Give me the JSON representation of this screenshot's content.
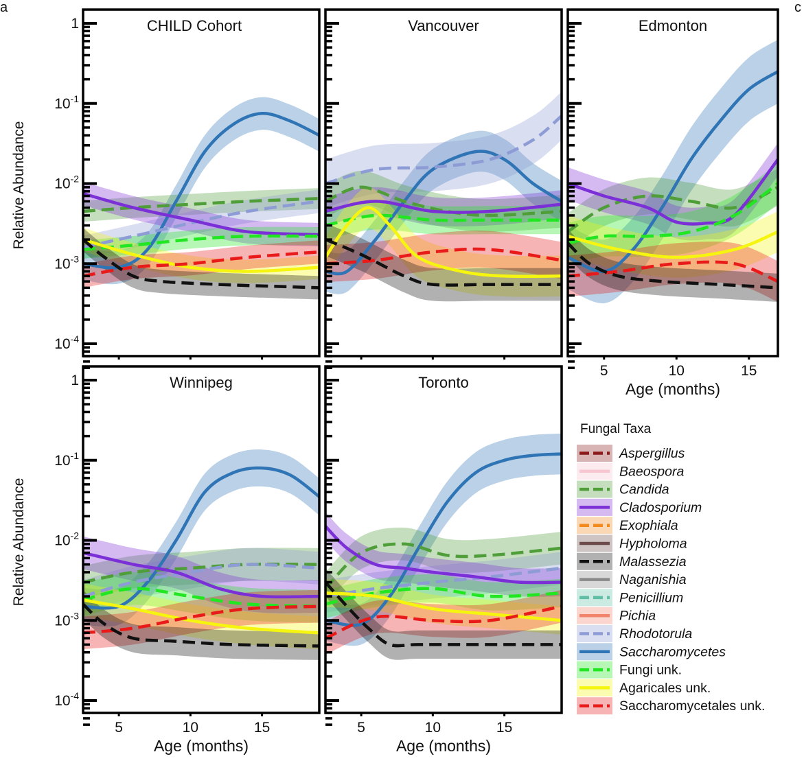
{
  "figure": {
    "panel_labels": [
      "a",
      "c"
    ],
    "ylabel": "Relative Abundance",
    "xlabel": "Age (months)",
    "legend_title": "Fungal Taxa"
  },
  "legend": [
    {
      "name": "Aspergillus",
      "italic": true,
      "color": "#8b1a1a",
      "dash": true
    },
    {
      "name": "Baeospora",
      "italic": true,
      "color": "#f7c6d0",
      "dash": false
    },
    {
      "name": "Candida",
      "italic": true,
      "color": "#4f9e3a",
      "dash": true
    },
    {
      "name": "Cladosporium",
      "italic": true,
      "color": "#7b2fd6",
      "dash": false
    },
    {
      "name": "Exophiala",
      "italic": true,
      "color": "#f28a1e",
      "dash": true
    },
    {
      "name": "Hypholoma",
      "italic": true,
      "color": "#6e4b4b",
      "dash": false
    },
    {
      "name": "Malassezia",
      "italic": true,
      "color": "#111111",
      "dash": true
    },
    {
      "name": "Naganishia",
      "italic": true,
      "color": "#8a8a8a",
      "dash": false
    },
    {
      "name": "Penicillium",
      "italic": true,
      "color": "#5fbfa6",
      "dash": true
    },
    {
      "name": "Pichia",
      "italic": true,
      "color": "#f2836b",
      "dash": false
    },
    {
      "name": "Rhodotorula",
      "italic": true,
      "color": "#8e9cd6",
      "dash": true
    },
    {
      "name": "Saccharomycetes",
      "italic": true,
      "color": "#2f74b5",
      "dash": false
    },
    {
      "name": "Fungi unk.",
      "italic": false,
      "color": "#22e622",
      "dash": true
    },
    {
      "name": "Agaricales unk.",
      "italic": false,
      "color": "#f5f50f",
      "dash": false
    },
    {
      "name": "Saccharomycetales unk.",
      "italic": false,
      "color": "#e81a1a",
      "dash": true
    }
  ],
  "chart_data": [
    {
      "type": "line",
      "title": "CHILD Cohort",
      "ylabel": "Relative Abundance",
      "xlabel": "",
      "yscale": "log",
      "ylim": [
        5e-05,
        1
      ],
      "xlim": [
        2.5,
        19
      ],
      "yticks": [
        1,
        0.1,
        0.01,
        0.001,
        0.0001
      ],
      "yticklabels": [
        "1",
        "10^-1",
        "10^-2",
        "10^-3",
        "10^-4"
      ],
      "xticks": [],
      "xticklabels": [],
      "series": [
        {
          "name": "Saccharomycetes",
          "x": [
            2.5,
            5,
            7,
            9,
            11,
            13,
            15,
            17,
            19
          ],
          "y": [
            0.001,
            0.0009,
            0.0015,
            0.006,
            0.025,
            0.055,
            0.075,
            0.06,
            0.04
          ],
          "band": 1.6
        },
        {
          "name": "Candida",
          "x": [
            2.5,
            6,
            10,
            14,
            19
          ],
          "y": [
            0.0045,
            0.005,
            0.0055,
            0.006,
            0.0065
          ],
          "band": 1.35
        },
        {
          "name": "Rhodotorula",
          "x": [
            2.5,
            6,
            10,
            14,
            19
          ],
          "y": [
            0.0016,
            0.0022,
            0.0032,
            0.0045,
            0.006
          ],
          "band": 1.4
        },
        {
          "name": "Cladosporium",
          "x": [
            2.5,
            6,
            10,
            14,
            19
          ],
          "y": [
            0.0075,
            0.005,
            0.0035,
            0.0025,
            0.0023
          ],
          "band": 1.4
        },
        {
          "name": "Fungi unk.",
          "x": [
            2.5,
            6,
            10,
            14,
            19
          ],
          "y": [
            0.0015,
            0.0017,
            0.002,
            0.0022,
            0.0022
          ],
          "band": 1.3
        },
        {
          "name": "Agaricales unk.",
          "x": [
            2.5,
            6,
            10,
            14,
            19
          ],
          "y": [
            0.002,
            0.0013,
            0.0009,
            0.0008,
            0.0009
          ],
          "band": 1.4
        },
        {
          "name": "Saccharomycetales unk.",
          "x": [
            2.5,
            6,
            10,
            14,
            19
          ],
          "y": [
            0.0007,
            0.0009,
            0.001,
            0.0012,
            0.0014
          ],
          "band": 1.4
        },
        {
          "name": "Malassezia",
          "x": [
            2.5,
            4,
            6,
            8,
            12,
            16,
            19
          ],
          "y": [
            0.002,
            0.0012,
            0.0007,
            0.0006,
            0.00055,
            0.00052,
            0.0005
          ],
          "band": 1.4
        }
      ]
    },
    {
      "type": "line",
      "title": "Vancouver",
      "ylabel": "",
      "xlabel": "",
      "yscale": "log",
      "ylim": [
        5e-05,
        1
      ],
      "xlim": [
        2.5,
        19
      ],
      "yticks": [
        1,
        0.1,
        0.01,
        0.001,
        0.0001
      ],
      "yticklabels": [],
      "xticks": [],
      "xticklabels": [],
      "series": [
        {
          "name": "Saccharomycetes",
          "x": [
            2.5,
            4,
            6,
            8,
            10,
            13,
            15,
            17,
            19
          ],
          "y": [
            0.0008,
            0.0008,
            0.002,
            0.006,
            0.015,
            0.025,
            0.02,
            0.01,
            0.006
          ],
          "band": 1.8
        },
        {
          "name": "Rhodotorula",
          "x": [
            2.5,
            6,
            10,
            14,
            17,
            19
          ],
          "y": [
            0.01,
            0.015,
            0.016,
            0.02,
            0.035,
            0.07
          ],
          "band": 2
        },
        {
          "name": "Candida",
          "x": [
            2.5,
            5,
            8,
            11,
            14,
            19
          ],
          "y": [
            0.006,
            0.009,
            0.006,
            0.0045,
            0.004,
            0.0045
          ],
          "band": 1.6
        },
        {
          "name": "Cladosporium",
          "x": [
            2.5,
            6,
            10,
            14,
            19
          ],
          "y": [
            0.0045,
            0.006,
            0.0045,
            0.0045,
            0.0055
          ],
          "band": 1.5
        },
        {
          "name": "Fungi unk.",
          "x": [
            2.5,
            6,
            10,
            14,
            19
          ],
          "y": [
            0.003,
            0.004,
            0.0035,
            0.0035,
            0.0035
          ],
          "band": 1.5
        },
        {
          "name": "Agaricales unk.",
          "x": [
            2.5,
            4,
            5.5,
            7,
            9,
            12,
            15,
            19
          ],
          "y": [
            0.0012,
            0.003,
            0.005,
            0.003,
            0.0012,
            0.0008,
            0.0007,
            0.0007
          ],
          "band": 1.8
        },
        {
          "name": "Saccharomycetales unk.",
          "x": [
            2.5,
            6,
            10,
            14,
            19
          ],
          "y": [
            0.001,
            0.0011,
            0.0014,
            0.0015,
            0.0011
          ],
          "band": 1.7
        },
        {
          "name": "Malassezia",
          "x": [
            2.5,
            5,
            8,
            10,
            14,
            19
          ],
          "y": [
            0.002,
            0.0013,
            0.0007,
            0.00055,
            0.00055,
            0.00055
          ],
          "band": 1.6
        }
      ]
    },
    {
      "type": "line",
      "title": "Edmonton",
      "ylabel": "",
      "xlabel": "Age (months)",
      "yscale": "log",
      "ylim": [
        5e-05,
        1
      ],
      "xlim": [
        2.5,
        17
      ],
      "yticks": [
        1,
        0.1,
        0.01,
        0.001,
        0.0001
      ],
      "yticklabels": [],
      "xticks": [
        5,
        10,
        15
      ],
      "xticklabels": [
        "5",
        "10",
        "15"
      ],
      "series": [
        {
          "name": "Saccharomycetes",
          "x": [
            2.5,
            5,
            7,
            9,
            11,
            13,
            15,
            17
          ],
          "y": [
            0.0012,
            0.0008,
            0.0015,
            0.005,
            0.02,
            0.06,
            0.15,
            0.25
          ],
          "band": 2.5
        },
        {
          "name": "Candida",
          "x": [
            2.5,
            5,
            8,
            11,
            14,
            17
          ],
          "y": [
            0.0025,
            0.005,
            0.007,
            0.006,
            0.005,
            0.009
          ],
          "band": 1.7
        },
        {
          "name": "Cladosporium",
          "x": [
            2.5,
            5,
            8,
            10,
            12,
            14,
            17
          ],
          "y": [
            0.01,
            0.007,
            0.005,
            0.0033,
            0.0032,
            0.004,
            0.02
          ],
          "band": 1.6
        },
        {
          "name": "Fungi unk.",
          "x": [
            2.5,
            5,
            8,
            11,
            14,
            17
          ],
          "y": [
            0.0018,
            0.0022,
            0.0022,
            0.0025,
            0.004,
            0.01
          ],
          "band": 1.8
        },
        {
          "name": "Agaricales unk.",
          "x": [
            2.5,
            6,
            10,
            14,
            17
          ],
          "y": [
            0.0022,
            0.0015,
            0.0012,
            0.0015,
            0.0025
          ],
          "band": 1.8
        },
        {
          "name": "Saccharomycetales unk.",
          "x": [
            2.5,
            6,
            10,
            14,
            17
          ],
          "y": [
            0.0007,
            0.0008,
            0.001,
            0.001,
            0.0006
          ],
          "band": 1.8
        },
        {
          "name": "Malassezia",
          "x": [
            2.5,
            4,
            6,
            9,
            13,
            17
          ],
          "y": [
            0.0018,
            0.001,
            0.0007,
            0.0006,
            0.00055,
            0.0005
          ],
          "band": 1.5
        }
      ]
    },
    {
      "type": "line",
      "title": "Winnipeg",
      "ylabel": "Relative Abundance",
      "xlabel": "Age (months)",
      "yscale": "log",
      "ylim": [
        5e-05,
        1
      ],
      "xlim": [
        2.5,
        19
      ],
      "yticks": [
        1,
        0.1,
        0.01,
        0.001,
        0.0001
      ],
      "yticklabels": [
        "1",
        "10^-1",
        "10^-2",
        "10^-3",
        "10^-4"
      ],
      "xticks": [
        5,
        10,
        15
      ],
      "xticklabels": [
        "5",
        "10",
        "15"
      ],
      "series": [
        {
          "name": "Saccharomycetes",
          "x": [
            2.5,
            5,
            7,
            9,
            11,
            13,
            15,
            17,
            19
          ],
          "y": [
            0.0015,
            0.0015,
            0.003,
            0.01,
            0.04,
            0.07,
            0.08,
            0.065,
            0.035
          ],
          "band": 1.7
        },
        {
          "name": "Candida",
          "x": [
            2.5,
            6,
            10,
            14,
            19
          ],
          "y": [
            0.003,
            0.004,
            0.0045,
            0.005,
            0.005
          ],
          "band": 1.6
        },
        {
          "name": "Rhodotorula",
          "x": [
            2.5,
            6,
            10,
            14,
            19
          ],
          "y": [
            0.002,
            0.003,
            0.004,
            0.005,
            0.0045
          ],
          "band": 1.6
        },
        {
          "name": "Cladosporium",
          "x": [
            2.5,
            6,
            9,
            12,
            15,
            19
          ],
          "y": [
            0.007,
            0.005,
            0.004,
            0.0025,
            0.002,
            0.002
          ],
          "band": 1.6
        },
        {
          "name": "Fungi unk.",
          "x": [
            2.5,
            6,
            10,
            14,
            19
          ],
          "y": [
            0.0018,
            0.0025,
            0.002,
            0.0016,
            0.0015
          ],
          "band": 1.6
        },
        {
          "name": "Agaricales unk.",
          "x": [
            2.5,
            6,
            10,
            14,
            19
          ],
          "y": [
            0.0018,
            0.0014,
            0.001,
            0.0008,
            0.0007
          ],
          "band": 1.6
        },
        {
          "name": "Saccharomycetales unk.",
          "x": [
            2.5,
            6,
            10,
            14,
            19
          ],
          "y": [
            0.0007,
            0.0008,
            0.0011,
            0.0014,
            0.0015
          ],
          "band": 1.6
        },
        {
          "name": "Malassezia",
          "x": [
            2.5,
            4,
            6,
            9,
            13,
            19
          ],
          "y": [
            0.0016,
            0.0009,
            0.0006,
            0.00055,
            0.0005,
            0.00048
          ],
          "band": 1.5
        }
      ]
    },
    {
      "type": "line",
      "title": "Toronto",
      "ylabel": "",
      "xlabel": "Age (months)",
      "yscale": "log",
      "ylim": [
        5e-05,
        1
      ],
      "xlim": [
        2.5,
        19
      ],
      "yticks": [
        1,
        0.1,
        0.01,
        0.001,
        0.0001
      ],
      "yticklabels": [],
      "xticks": [
        5,
        10,
        15
      ],
      "xticklabels": [
        "5",
        "10",
        "15"
      ],
      "series": [
        {
          "name": "Saccharomycetes",
          "x": [
            2.5,
            5,
            7,
            9,
            11,
            13,
            15,
            17,
            19
          ],
          "y": [
            0.001,
            0.0009,
            0.002,
            0.008,
            0.03,
            0.07,
            0.1,
            0.115,
            0.12
          ],
          "band": 1.8
        },
        {
          "name": "Candida",
          "x": [
            2.5,
            5,
            8,
            11,
            14,
            19
          ],
          "y": [
            0.0025,
            0.007,
            0.009,
            0.0065,
            0.0065,
            0.008
          ],
          "band": 1.6
        },
        {
          "name": "Rhodotorula",
          "x": [
            2.5,
            6,
            10,
            14,
            19
          ],
          "y": [
            0.002,
            0.0025,
            0.003,
            0.0035,
            0.0045
          ],
          "band": 1.6
        },
        {
          "name": "Cladosporium",
          "x": [
            2.5,
            4,
            6,
            8,
            10,
            13,
            16,
            19
          ],
          "y": [
            0.015,
            0.008,
            0.005,
            0.0045,
            0.004,
            0.0035,
            0.003,
            0.003
          ],
          "band": 1.5
        },
        {
          "name": "Fungi unk.",
          "x": [
            2.5,
            6,
            10,
            14,
            19
          ],
          "y": [
            0.0016,
            0.0022,
            0.0025,
            0.002,
            0.0022
          ],
          "band": 1.5
        },
        {
          "name": "Agaricales unk.",
          "x": [
            2.5,
            6,
            10,
            14,
            19
          ],
          "y": [
            0.0022,
            0.002,
            0.0014,
            0.0012,
            0.001
          ],
          "band": 1.5
        },
        {
          "name": "Saccharomycetales unk.",
          "x": [
            2.5,
            6,
            10,
            14,
            19
          ],
          "y": [
            0.0006,
            0.0011,
            0.001,
            0.001,
            0.0015
          ],
          "band": 1.6
        },
        {
          "name": "Malassezia",
          "x": [
            2.5,
            4,
            5.5,
            7,
            9,
            13,
            19
          ],
          "y": [
            0.003,
            0.0015,
            0.0008,
            0.0005,
            0.0005,
            0.0005,
            0.0005
          ],
          "band": 1.5
        }
      ]
    }
  ]
}
